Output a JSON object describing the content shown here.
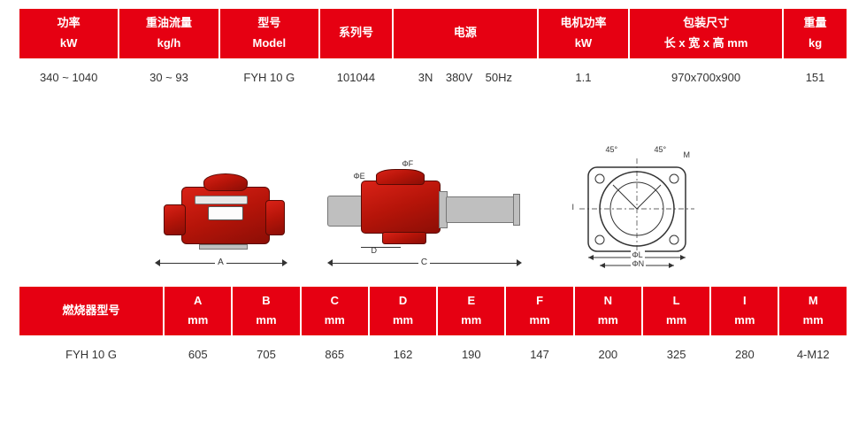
{
  "colors": {
    "header_bg": "#e60012",
    "header_text": "#ffffff",
    "cell_text": "#333333",
    "background": "#ffffff",
    "burner_red": "#c8170c",
    "burner_outline": "#333333",
    "dim_line": "#333333"
  },
  "spec_table": {
    "headers": [
      {
        "l1": "功率",
        "l2": "kW",
        "w": "110"
      },
      {
        "l1": "重油流量",
        "l2": "kg/h",
        "w": "110"
      },
      {
        "l1": "型号",
        "l2": "Model",
        "w": "110"
      },
      {
        "l1": "系列号",
        "l2": "",
        "w": "80"
      },
      {
        "l1": "电源",
        "l2": "",
        "w": "160"
      },
      {
        "l1": "电机功率",
        "l2": "kW",
        "w": "100"
      },
      {
        "l1": "包装尺寸",
        "l2": "长 x 宽 x 高   mm",
        "w": "170"
      },
      {
        "l1": "重量",
        "l2": "kg",
        "w": "70"
      }
    ],
    "row": [
      "340 ~ 1040",
      "30 ~ 93",
      "FYH 10 G",
      "101044",
      "3N    380V    50Hz",
      "1.1",
      "970x700x900",
      "151"
    ]
  },
  "dim_table": {
    "headers": [
      {
        "l1": "燃烧器型号",
        "l2": "",
        "w": "170"
      },
      {
        "l1": "A",
        "l2": "mm",
        "w": "78"
      },
      {
        "l1": "B",
        "l2": "mm",
        "w": "78"
      },
      {
        "l1": "C",
        "l2": "mm",
        "w": "78"
      },
      {
        "l1": "D",
        "l2": "mm",
        "w": "78"
      },
      {
        "l1": "E",
        "l2": "mm",
        "w": "78"
      },
      {
        "l1": "F",
        "l2": "mm",
        "w": "78"
      },
      {
        "l1": "N",
        "l2": "mm",
        "w": "78"
      },
      {
        "l1": "L",
        "l2": "mm",
        "w": "78"
      },
      {
        "l1": "I",
        "l2": "mm",
        "w": "78"
      },
      {
        "l1": "M",
        "l2": "mm",
        "w": "78"
      }
    ],
    "row": [
      "FYH 10 G",
      "605",
      "705",
      "865",
      "162",
      "190",
      "147",
      "200",
      "325",
      "280",
      "4-M12"
    ]
  },
  "diagrams": {
    "view1_label": "A",
    "view2_label": "C",
    "view2_sub_labels": {
      "D": "D",
      "phiE": "ΦE",
      "phiF": "ΦF"
    },
    "view3_labels": {
      "angle_l": "45°",
      "angle_r": "45°",
      "M": "M",
      "I": "I",
      "phiN": "ΦN",
      "phiL": "ΦL"
    }
  }
}
